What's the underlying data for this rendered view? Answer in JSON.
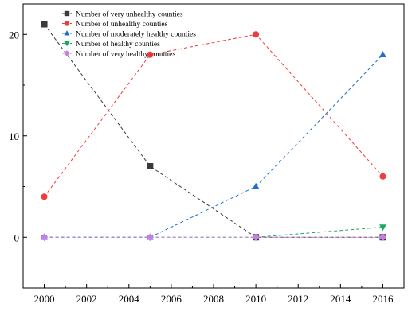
{
  "chart_data": {
    "type": "line",
    "title": "",
    "xlabel": "",
    "ylabel": "",
    "xlim": [
      1999,
      2017
    ],
    "ylim": [
      -5,
      23
    ],
    "x_ticks": [
      2000,
      2002,
      2004,
      2006,
      2008,
      2010,
      2012,
      2014,
      2016
    ],
    "y_ticks": [
      0,
      10,
      20
    ],
    "grid": false,
    "legend_position": "top-left",
    "line_style": "dashed",
    "series": [
      {
        "name": "Number of very unhealthy counties",
        "color": "#3a3a3a",
        "marker": "square",
        "x": [
          2000,
          2005,
          2010,
          2016
        ],
        "y": [
          21,
          7,
          0,
          0
        ]
      },
      {
        "name": "Number of unhealthy counties",
        "color": "#f03c3c",
        "marker": "circle",
        "x": [
          2000,
          2005,
          2010,
          2016
        ],
        "y": [
          4,
          18,
          20,
          6
        ]
      },
      {
        "name": "Number of moderately healthy counties",
        "color": "#1f6fd1",
        "marker": "triangle-up",
        "x": [
          2000,
          2005,
          2010,
          2016
        ],
        "y": [
          0,
          0,
          5,
          18
        ]
      },
      {
        "name": "Number of healthy counties",
        "color": "#1aa665",
        "marker": "triangle-down",
        "x": [
          2000,
          2005,
          2010,
          2016
        ],
        "y": [
          0,
          0,
          0,
          1
        ]
      },
      {
        "name": "Number of very healthy counties",
        "color": "#c77ee6",
        "marker": "diamond",
        "x": [
          2000,
          2005,
          2010,
          2016
        ],
        "y": [
          0,
          0,
          0,
          0
        ]
      }
    ]
  }
}
